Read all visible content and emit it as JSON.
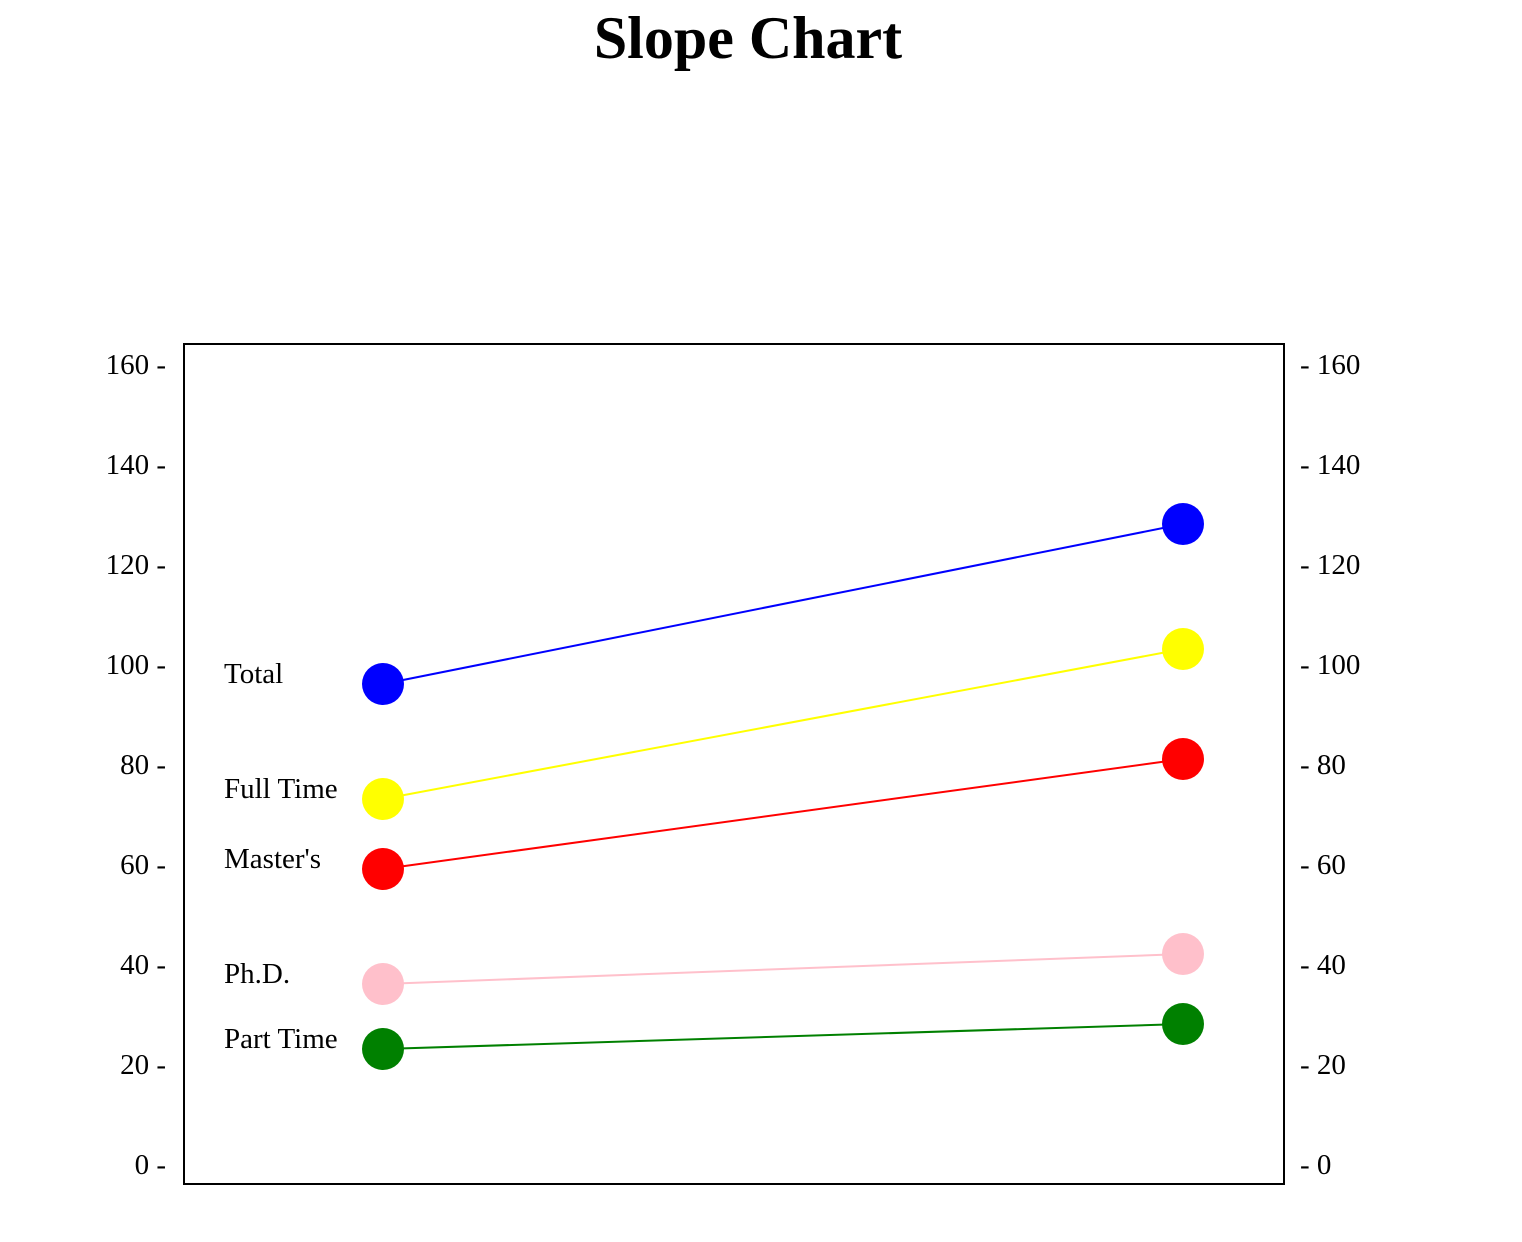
{
  "chart_data": {
    "type": "line",
    "title": "Slope Chart",
    "xlabel": "",
    "ylabel": "",
    "ylim": [
      0,
      160
    ],
    "y_ticks": [
      0,
      20,
      40,
      60,
      80,
      100,
      120,
      140,
      160
    ],
    "left_tick_labels": [
      "0 -",
      "20 -",
      "40 -",
      "60 -",
      "80 -",
      "100 -",
      "120 -",
      "140 -",
      "160 -"
    ],
    "right_tick_labels": [
      "- 0",
      "- 20",
      "- 40",
      "- 60",
      "- 80",
      "- 100",
      "- 120",
      "- 140",
      "- 160"
    ],
    "grid": false,
    "series": [
      {
        "name": "Total",
        "values": [
          96,
          128
        ],
        "color": "#0000ff"
      },
      {
        "name": "Full Time",
        "values": [
          73,
          103
        ],
        "color": "#ffff00"
      },
      {
        "name": "Master's",
        "values": [
          59,
          81
        ],
        "color": "#ff0000"
      },
      {
        "name": "Ph.D.",
        "values": [
          36,
          42
        ],
        "color": "#ffc0cb"
      },
      {
        "name": "Part Time",
        "values": [
          23,
          28
        ],
        "color": "#008000"
      }
    ]
  }
}
